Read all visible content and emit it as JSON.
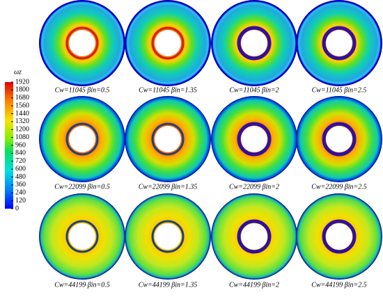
{
  "colorbar": {
    "label": "ωz",
    "lim": [
      0,
      1920
    ],
    "ticks": [
      0,
      120,
      240,
      360,
      480,
      600,
      720,
      840,
      960,
      1080,
      1200,
      1320,
      1440,
      1560,
      1680,
      1800,
      1920
    ]
  },
  "panels": [
    {
      "caption": "Cw=11045 βin=0.5"
    },
    {
      "caption": "Cw=11045 βin=1.35"
    },
    {
      "caption": "Cw=11045 βin=2"
    },
    {
      "caption": "Cw=11045 βin=2.5"
    },
    {
      "caption": "Cw=22099 βin=0.5"
    },
    {
      "caption": "Cw=22099 βin=1.35"
    },
    {
      "caption": "Cw=22099 βin=2"
    },
    {
      "caption": "Cw=22099 βin=2.5"
    },
    {
      "caption": "Cw=44199 βin=0.5"
    },
    {
      "caption": "Cw=44199 βin=1.35"
    },
    {
      "caption": "Cw=44199 βin=2"
    },
    {
      "caption": "Cw=44199 βin=2.5"
    }
  ]
}
